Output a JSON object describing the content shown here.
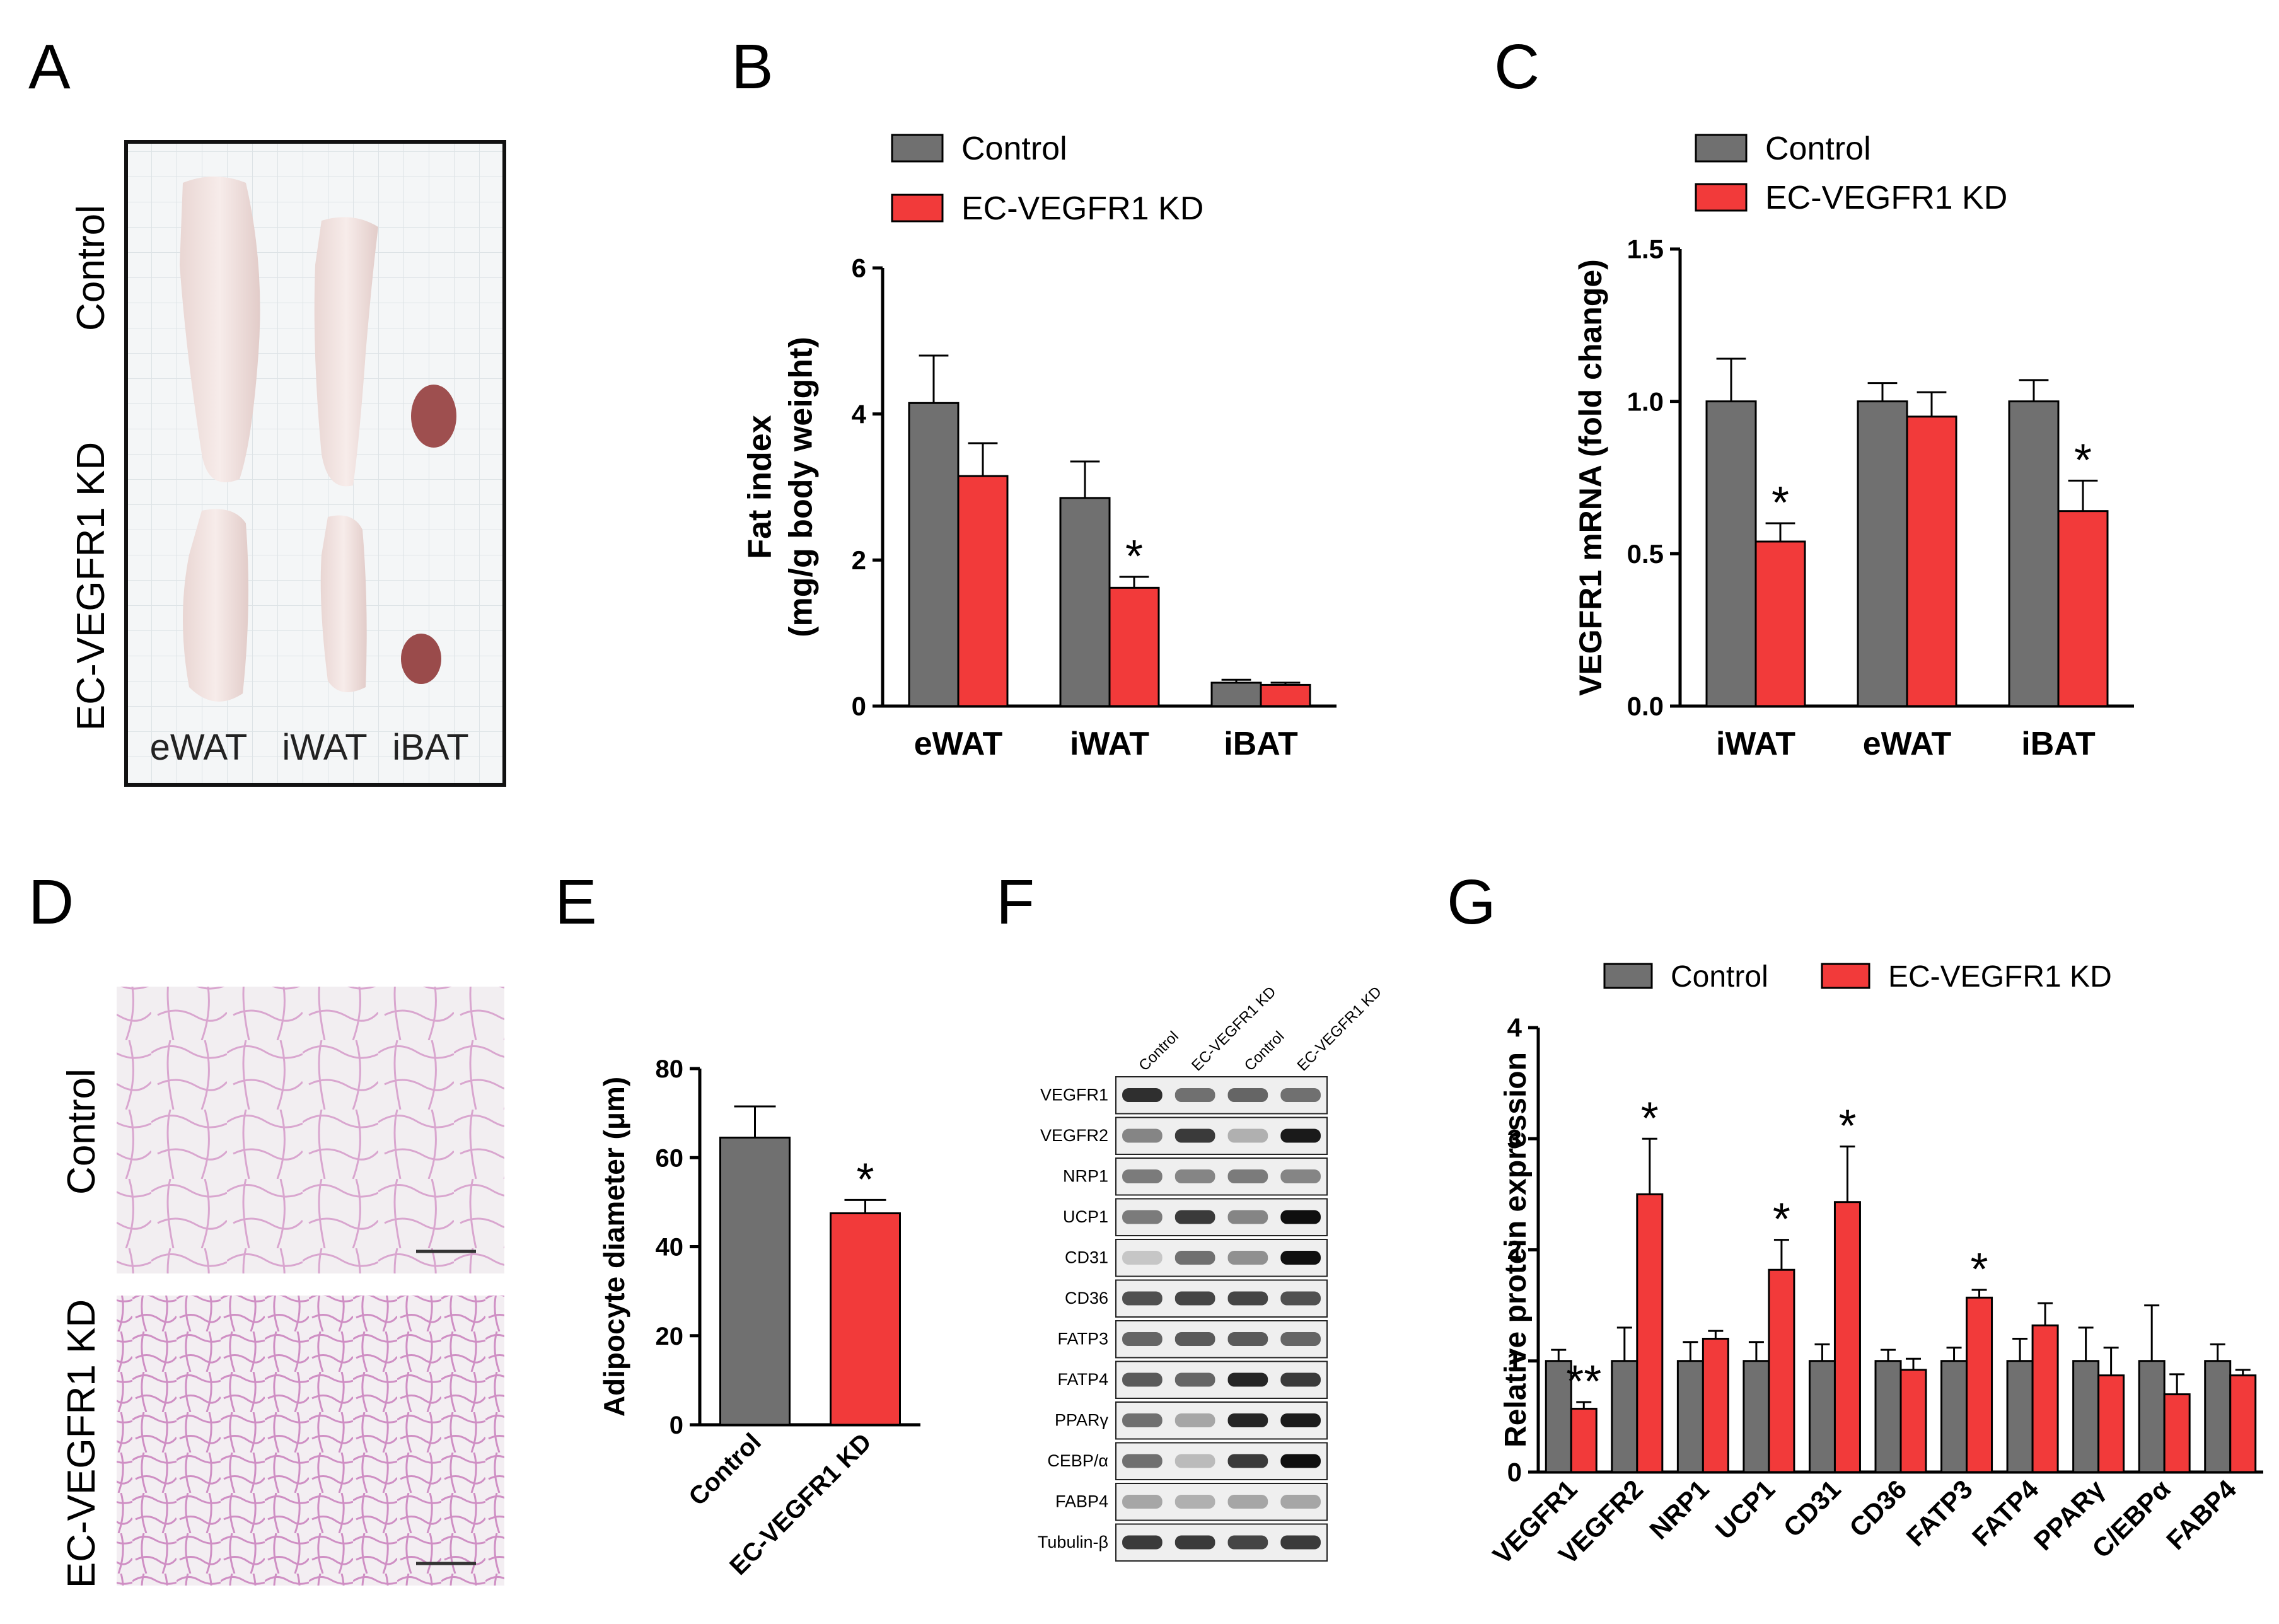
{
  "colors": {
    "control": "#707070",
    "kd": "#f23a3a",
    "axis": "#000000"
  },
  "panel_a": {
    "letter": "A",
    "row_labels": [
      "Control",
      "EC-VEGFR1 KD"
    ],
    "tissue_labels": [
      "eWAT",
      "iWAT",
      "iBAT"
    ]
  },
  "panel_d": {
    "letter": "D",
    "row_labels": [
      "Control",
      "EC-VEGFR1 KD"
    ]
  },
  "panel_f": {
    "letter": "F",
    "lanes": [
      "Control",
      "EC-VEGFR1 KD",
      "Control",
      "EC-VEGFR1 KD"
    ],
    "proteins": [
      "VEGFR1",
      "VEGFR2",
      "NRP1",
      "UCP1",
      "CD31",
      "CD36",
      "FATP3",
      "FATP4",
      "PPARγ",
      "CEBP/α",
      "FABP4",
      "Tubulin-β"
    ],
    "intensity": [
      [
        0.85,
        0.55,
        0.6,
        0.55
      ],
      [
        0.45,
        0.8,
        0.25,
        0.95
      ],
      [
        0.5,
        0.45,
        0.5,
        0.45
      ],
      [
        0.5,
        0.8,
        0.45,
        1.0
      ],
      [
        0.15,
        0.55,
        0.4,
        1.0
      ],
      [
        0.7,
        0.75,
        0.75,
        0.7
      ],
      [
        0.6,
        0.65,
        0.65,
        0.6
      ],
      [
        0.65,
        0.6,
        0.9,
        0.8
      ],
      [
        0.55,
        0.3,
        0.9,
        0.95
      ],
      [
        0.55,
        0.2,
        0.8,
        1.0
      ],
      [
        0.3,
        0.25,
        0.3,
        0.3
      ],
      [
        0.8,
        0.8,
        0.75,
        0.8
      ]
    ]
  },
  "chart_data": [
    {
      "id": "B",
      "letter": "B",
      "type": "bar",
      "categories": [
        "eWAT",
        "iWAT",
        "iBAT"
      ],
      "series": [
        {
          "name": "Control",
          "values": [
            4.15,
            2.85,
            0.32
          ],
          "errors": [
            0.65,
            0.5,
            0.04
          ],
          "sig": [
            "",
            "",
            ""
          ]
        },
        {
          "name": "EC-VEGFR1 KD",
          "values": [
            3.15,
            1.62,
            0.29
          ],
          "errors": [
            0.45,
            0.15,
            0.03
          ],
          "sig": [
            "",
            "*",
            ""
          ]
        }
      ],
      "ylabel_lines": [
        "Fat index",
        "(mg/g body weight)"
      ],
      "ylim": [
        0,
        6
      ],
      "yticks": [
        0,
        2,
        4,
        6
      ],
      "legend": "top-left",
      "grid": false
    },
    {
      "id": "C",
      "letter": "C",
      "type": "bar",
      "categories": [
        "iWAT",
        "eWAT",
        "iBAT"
      ],
      "series": [
        {
          "name": "Control",
          "values": [
            1.0,
            1.0,
            1.0
          ],
          "errors": [
            0.14,
            0.06,
            0.07
          ],
          "sig": [
            "",
            "",
            ""
          ]
        },
        {
          "name": "EC-VEGFR1 KD",
          "values": [
            0.54,
            0.95,
            0.64
          ],
          "errors": [
            0.06,
            0.08,
            0.1
          ],
          "sig": [
            "*",
            "",
            "*"
          ]
        }
      ],
      "ylabel_lines": [
        "VEGFR1 mRNA (fold change)"
      ],
      "ylim": [
        0,
        1.5
      ],
      "yticks": [
        "0.0",
        "0.5",
        "1.0",
        "1.5"
      ],
      "legend": "top-left",
      "grid": false
    },
    {
      "id": "E",
      "letter": "E",
      "type": "bar",
      "categories": [
        "Control",
        "EC-VEGFR1 KD"
      ],
      "values": [
        64.5,
        47.5
      ],
      "errors": [
        7,
        3
      ],
      "sig": [
        "",
        "*"
      ],
      "ylabel_lines": [
        "Adipocyte diameter (μm)"
      ],
      "ylim": [
        0,
        80
      ],
      "yticks": [
        0,
        20,
        40,
        60,
        80
      ],
      "grid": false
    },
    {
      "id": "G",
      "letter": "G",
      "type": "bar",
      "categories": [
        "VEGFR1",
        "VEGFR2",
        "NRP1",
        "UCP1",
        "CD31",
        "CD36",
        "FATP3",
        "FATP4",
        "PPARγ",
        "C/EBPα",
        "FABP4"
      ],
      "series": [
        {
          "name": "Control",
          "values": [
            1,
            1,
            1,
            1,
            1,
            1,
            1,
            1,
            1,
            1,
            1
          ],
          "errors": [
            0.1,
            0.3,
            0.17,
            0.17,
            0.15,
            0.1,
            0.12,
            0.2,
            0.3,
            0.5,
            0.15
          ],
          "sig": [
            "",
            "",
            "",
            "",
            "",
            "",
            "",
            "",
            "",
            "",
            ""
          ]
        },
        {
          "name": "EC-VEGFR1 KD",
          "values": [
            0.57,
            2.5,
            1.2,
            1.82,
            2.43,
            0.92,
            1.57,
            1.32,
            0.87,
            0.7,
            0.87
          ],
          "errors": [
            0.06,
            0.5,
            0.07,
            0.27,
            0.5,
            0.1,
            0.07,
            0.2,
            0.25,
            0.18,
            0.05
          ],
          "sig": [
            "**",
            "*",
            "",
            "*",
            "*",
            "",
            "*",
            "",
            "",
            "",
            ""
          ]
        }
      ],
      "ylabel_lines": [
        "Relative protein expression"
      ],
      "ylim": [
        0,
        4
      ],
      "yticks": [
        0,
        1,
        2,
        3,
        4
      ],
      "legend": "top",
      "grid": false
    }
  ]
}
